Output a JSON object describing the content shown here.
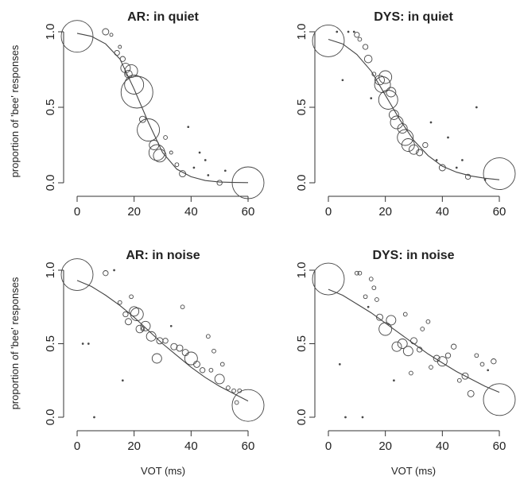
{
  "chart_data": [
    {
      "type": "scatter",
      "title": "AR: in quiet",
      "xlabel": "",
      "ylabel": "proportion of 'bee' responses",
      "xlim": [
        0,
        60
      ],
      "ylim": [
        0,
        1
      ],
      "xticks": [
        "0",
        "20",
        "40",
        "60"
      ],
      "yticks": [
        "0.0",
        "0.5",
        "1.0"
      ],
      "points": [
        {
          "x": 0,
          "y": 0.97,
          "size": 5
        },
        {
          "x": 10,
          "y": 1.0,
          "size": 1
        },
        {
          "x": 12,
          "y": 0.98,
          "size": 0.5
        },
        {
          "x": 14,
          "y": 0.86,
          "size": 0.8
        },
        {
          "x": 15,
          "y": 0.9,
          "size": 0.5
        },
        {
          "x": 16,
          "y": 0.82,
          "size": 0.8
        },
        {
          "x": 17,
          "y": 0.76,
          "size": 1.5
        },
        {
          "x": 18,
          "y": 0.72,
          "size": 1.2
        },
        {
          "x": 19,
          "y": 0.74,
          "size": 2
        },
        {
          "x": 21,
          "y": 0.6,
          "size": 5
        },
        {
          "x": 20,
          "y": 0.65,
          "size": 3
        },
        {
          "x": 23,
          "y": 0.42,
          "size": 1
        },
        {
          "x": 25,
          "y": 0.35,
          "size": 3.5
        },
        {
          "x": 27,
          "y": 0.25,
          "size": 1.5
        },
        {
          "x": 28,
          "y": 0.2,
          "size": 2.5
        },
        {
          "x": 29,
          "y": 0.18,
          "size": 2
        },
        {
          "x": 31,
          "y": 0.3,
          "size": 0.6
        },
        {
          "x": 33,
          "y": 0.2,
          "size": 0.5
        },
        {
          "x": 35,
          "y": 0.12,
          "size": 0.6
        },
        {
          "x": 37,
          "y": 0.06,
          "size": 1
        },
        {
          "x": 39,
          "y": 0.37,
          "size": 0.3
        },
        {
          "x": 41,
          "y": 0.1,
          "size": 0.3
        },
        {
          "x": 43,
          "y": 0.2,
          "size": 0.3
        },
        {
          "x": 45,
          "y": 0.15,
          "size": 0.3
        },
        {
          "x": 46,
          "y": 0.05,
          "size": 0.3
        },
        {
          "x": 50,
          "y": 0.0,
          "size": 0.8
        },
        {
          "x": 52,
          "y": 0.08,
          "size": 0.3
        },
        {
          "x": 60,
          "y": 0.0,
          "size": 5
        }
      ],
      "curve": {
        "x": [
          0,
          5,
          10,
          15,
          20,
          25,
          30,
          35,
          40,
          45,
          50,
          55,
          60
        ],
        "y": [
          0.99,
          0.97,
          0.92,
          0.82,
          0.62,
          0.4,
          0.2,
          0.09,
          0.04,
          0.015,
          0.005,
          0.002,
          0.001
        ]
      }
    },
    {
      "type": "scatter",
      "title": "DYS: in quiet",
      "xlabel": "",
      "ylabel": "",
      "xlim": [
        0,
        60
      ],
      "ylim": [
        0,
        1
      ],
      "xticks": [
        "0",
        "20",
        "40",
        "60"
      ],
      "yticks": [
        "0.0",
        "0.5",
        "1.0"
      ],
      "points": [
        {
          "x": 0,
          "y": 0.94,
          "size": 5
        },
        {
          "x": 3,
          "y": 1.0,
          "size": 0.3
        },
        {
          "x": 5,
          "y": 0.68,
          "size": 0.3
        },
        {
          "x": 7,
          "y": 1.0,
          "size": 0.3
        },
        {
          "x": 9,
          "y": 1.0,
          "size": 0.3
        },
        {
          "x": 10,
          "y": 0.98,
          "size": 0.8
        },
        {
          "x": 11,
          "y": 0.95,
          "size": 0.6
        },
        {
          "x": 13,
          "y": 0.9,
          "size": 0.8
        },
        {
          "x": 14,
          "y": 0.82,
          "size": 1.2
        },
        {
          "x": 15,
          "y": 0.56,
          "size": 0.3
        },
        {
          "x": 16,
          "y": 0.72,
          "size": 0.6
        },
        {
          "x": 18,
          "y": 0.68,
          "size": 1.5
        },
        {
          "x": 19,
          "y": 0.65,
          "size": 2.5
        },
        {
          "x": 20,
          "y": 0.7,
          "size": 2
        },
        {
          "x": 21,
          "y": 0.55,
          "size": 3
        },
        {
          "x": 22,
          "y": 0.6,
          "size": 1.5
        },
        {
          "x": 23,
          "y": 0.45,
          "size": 1.5
        },
        {
          "x": 24,
          "y": 0.4,
          "size": 2
        },
        {
          "x": 26,
          "y": 0.36,
          "size": 1.5
        },
        {
          "x": 27,
          "y": 0.3,
          "size": 2.5
        },
        {
          "x": 28,
          "y": 0.25,
          "size": 2
        },
        {
          "x": 30,
          "y": 0.22,
          "size": 1.5
        },
        {
          "x": 32,
          "y": 0.2,
          "size": 1
        },
        {
          "x": 34,
          "y": 0.25,
          "size": 0.8
        },
        {
          "x": 36,
          "y": 0.4,
          "size": 0.3
        },
        {
          "x": 38,
          "y": 0.15,
          "size": 0.3
        },
        {
          "x": 40,
          "y": 0.1,
          "size": 1
        },
        {
          "x": 42,
          "y": 0.3,
          "size": 0.3
        },
        {
          "x": 45,
          "y": 0.1,
          "size": 0.3
        },
        {
          "x": 47,
          "y": 0.15,
          "size": 0.3
        },
        {
          "x": 49,
          "y": 0.04,
          "size": 0.8
        },
        {
          "x": 52,
          "y": 0.5,
          "size": 0.3
        },
        {
          "x": 55,
          "y": 0.02,
          "size": 0.3
        },
        {
          "x": 60,
          "y": 0.06,
          "size": 5
        }
      ],
      "curve": {
        "x": [
          0,
          5,
          10,
          15,
          20,
          25,
          30,
          35,
          40,
          45,
          50,
          55,
          60
        ],
        "y": [
          0.95,
          0.92,
          0.85,
          0.74,
          0.58,
          0.42,
          0.28,
          0.18,
          0.11,
          0.07,
          0.045,
          0.03,
          0.02
        ]
      }
    },
    {
      "type": "scatter",
      "title": "AR: in noise",
      "xlabel": "VOT (ms)",
      "ylabel": "proportion of 'bee' responses",
      "xlim": [
        0,
        60
      ],
      "ylim": [
        0,
        1
      ],
      "xticks": [
        "0",
        "20",
        "40",
        "60"
      ],
      "yticks": [
        "0.0",
        "0.5",
        "1.0"
      ],
      "points": [
        {
          "x": 0,
          "y": 0.97,
          "size": 5
        },
        {
          "x": 2,
          "y": 0.5,
          "size": 0.3
        },
        {
          "x": 4,
          "y": 0.5,
          "size": 0.3
        },
        {
          "x": 6,
          "y": 0.0,
          "size": 0.3
        },
        {
          "x": 10,
          "y": 0.98,
          "size": 0.8
        },
        {
          "x": 13,
          "y": 1.0,
          "size": 0.3
        },
        {
          "x": 15,
          "y": 0.78,
          "size": 0.6
        },
        {
          "x": 16,
          "y": 0.25,
          "size": 0.3
        },
        {
          "x": 17,
          "y": 0.7,
          "size": 0.8
        },
        {
          "x": 18,
          "y": 0.65,
          "size": 1
        },
        {
          "x": 19,
          "y": 0.82,
          "size": 0.6
        },
        {
          "x": 20,
          "y": 0.72,
          "size": 1.5
        },
        {
          "x": 21,
          "y": 0.7,
          "size": 2
        },
        {
          "x": 22,
          "y": 0.6,
          "size": 1.2
        },
        {
          "x": 23,
          "y": 0.6,
          "size": 0.6
        },
        {
          "x": 24,
          "y": 0.62,
          "size": 1.5
        },
        {
          "x": 26,
          "y": 0.55,
          "size": 1.5
        },
        {
          "x": 28,
          "y": 0.4,
          "size": 1.5
        },
        {
          "x": 29,
          "y": 0.52,
          "size": 1
        },
        {
          "x": 31,
          "y": 0.52,
          "size": 0.8
        },
        {
          "x": 33,
          "y": 0.62,
          "size": 0.3
        },
        {
          "x": 34,
          "y": 0.48,
          "size": 1
        },
        {
          "x": 36,
          "y": 0.47,
          "size": 1
        },
        {
          "x": 37,
          "y": 0.75,
          "size": 0.6
        },
        {
          "x": 38,
          "y": 0.44,
          "size": 1
        },
        {
          "x": 40,
          "y": 0.4,
          "size": 2
        },
        {
          "x": 42,
          "y": 0.36,
          "size": 1
        },
        {
          "x": 44,
          "y": 0.32,
          "size": 0.8
        },
        {
          "x": 46,
          "y": 0.55,
          "size": 0.6
        },
        {
          "x": 47,
          "y": 0.32,
          "size": 0.6
        },
        {
          "x": 48,
          "y": 0.45,
          "size": 0.6
        },
        {
          "x": 50,
          "y": 0.26,
          "size": 1.5
        },
        {
          "x": 51,
          "y": 0.36,
          "size": 0.6
        },
        {
          "x": 53,
          "y": 0.2,
          "size": 0.6
        },
        {
          "x": 55,
          "y": 0.18,
          "size": 0.6
        },
        {
          "x": 56,
          "y": 0.1,
          "size": 0.6
        },
        {
          "x": 57,
          "y": 0.18,
          "size": 0.6
        },
        {
          "x": 60,
          "y": 0.08,
          "size": 5
        }
      ],
      "curve": {
        "x": [
          0,
          5,
          10,
          15,
          20,
          25,
          30,
          35,
          40,
          45,
          50,
          55,
          60
        ],
        "y": [
          0.93,
          0.89,
          0.83,
          0.76,
          0.68,
          0.59,
          0.5,
          0.42,
          0.34,
          0.27,
          0.21,
          0.16,
          0.11
        ]
      }
    },
    {
      "type": "scatter",
      "title": "DYS: in noise",
      "xlabel": "VOT (ms)",
      "ylabel": "",
      "xlim": [
        0,
        60
      ],
      "ylim": [
        0,
        1
      ],
      "xticks": [
        "0",
        "20",
        "40",
        "60"
      ],
      "yticks": [
        "0.0",
        "0.5",
        "1.0"
      ],
      "points": [
        {
          "x": 0,
          "y": 0.94,
          "size": 5
        },
        {
          "x": 4,
          "y": 0.36,
          "size": 0.3
        },
        {
          "x": 6,
          "y": 0.0,
          "size": 0.3
        },
        {
          "x": 10,
          "y": 0.98,
          "size": 0.6
        },
        {
          "x": 11,
          "y": 0.98,
          "size": 0.6
        },
        {
          "x": 12,
          "y": 0.0,
          "size": 0.3
        },
        {
          "x": 13,
          "y": 0.82,
          "size": 0.6
        },
        {
          "x": 14,
          "y": 0.75,
          "size": 0.3
        },
        {
          "x": 15,
          "y": 0.94,
          "size": 0.6
        },
        {
          "x": 16,
          "y": 0.88,
          "size": 0.6
        },
        {
          "x": 17,
          "y": 0.8,
          "size": 0.6
        },
        {
          "x": 18,
          "y": 0.68,
          "size": 1
        },
        {
          "x": 20,
          "y": 0.6,
          "size": 2
        },
        {
          "x": 22,
          "y": 0.66,
          "size": 1.5
        },
        {
          "x": 23,
          "y": 0.25,
          "size": 0.3
        },
        {
          "x": 24,
          "y": 0.48,
          "size": 1.5
        },
        {
          "x": 26,
          "y": 0.5,
          "size": 1.5
        },
        {
          "x": 27,
          "y": 0.7,
          "size": 0.6
        },
        {
          "x": 28,
          "y": 0.45,
          "size": 1.5
        },
        {
          "x": 29,
          "y": 0.3,
          "size": 0.6
        },
        {
          "x": 30,
          "y": 0.52,
          "size": 1
        },
        {
          "x": 32,
          "y": 0.46,
          "size": 0.8
        },
        {
          "x": 33,
          "y": 0.6,
          "size": 0.6
        },
        {
          "x": 35,
          "y": 0.65,
          "size": 0.6
        },
        {
          "x": 36,
          "y": 0.34,
          "size": 0.6
        },
        {
          "x": 38,
          "y": 0.4,
          "size": 1
        },
        {
          "x": 40,
          "y": 0.38,
          "size": 1.5
        },
        {
          "x": 42,
          "y": 0.42,
          "size": 0.8
        },
        {
          "x": 44,
          "y": 0.48,
          "size": 0.8
        },
        {
          "x": 46,
          "y": 0.25,
          "size": 0.6
        },
        {
          "x": 48,
          "y": 0.28,
          "size": 1
        },
        {
          "x": 50,
          "y": 0.16,
          "size": 1
        },
        {
          "x": 52,
          "y": 0.42,
          "size": 0.6
        },
        {
          "x": 54,
          "y": 0.36,
          "size": 0.6
        },
        {
          "x": 56,
          "y": 0.32,
          "size": 0.3
        },
        {
          "x": 58,
          "y": 0.38,
          "size": 0.8
        },
        {
          "x": 60,
          "y": 0.12,
          "size": 5
        }
      ],
      "curve": {
        "x": [
          0,
          5,
          10,
          15,
          20,
          25,
          30,
          35,
          40,
          45,
          50,
          55,
          60
        ],
        "y": [
          0.87,
          0.83,
          0.77,
          0.71,
          0.64,
          0.57,
          0.5,
          0.43,
          0.37,
          0.31,
          0.26,
          0.21,
          0.17
        ]
      }
    }
  ]
}
